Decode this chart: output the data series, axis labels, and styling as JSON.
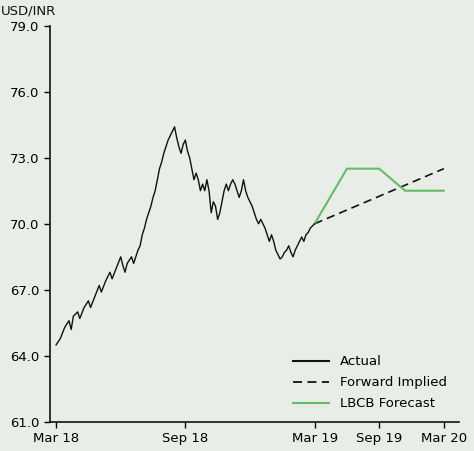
{
  "background_color": "#e8ede8",
  "ylabel": "USD/INR",
  "ylim": [
    61.0,
    79.0
  ],
  "yticks": [
    61.0,
    64.0,
    67.0,
    70.0,
    73.0,
    76.0,
    79.0
  ],
  "xtick_labels": [
    "Mar 18",
    "Sep 18",
    "Mar 19",
    "Sep 19",
    "Mar 20"
  ],
  "xtick_pos": [
    0,
    6,
    12,
    15,
    18
  ],
  "xlim": [
    -0.3,
    18.7
  ],
  "actual_color": "#111111",
  "forward_color": "#111111",
  "lbcb_color": "#66bb66",
  "actual_data": [
    [
      0.0,
      64.5
    ],
    [
      0.2,
      64.8
    ],
    [
      0.4,
      65.3
    ],
    [
      0.6,
      65.6
    ],
    [
      0.7,
      65.2
    ],
    [
      0.8,
      65.8
    ],
    [
      1.0,
      66.0
    ],
    [
      1.1,
      65.7
    ],
    [
      1.3,
      66.2
    ],
    [
      1.5,
      66.5
    ],
    [
      1.6,
      66.2
    ],
    [
      1.8,
      66.7
    ],
    [
      2.0,
      67.2
    ],
    [
      2.1,
      66.9
    ],
    [
      2.3,
      67.4
    ],
    [
      2.5,
      67.8
    ],
    [
      2.6,
      67.5
    ],
    [
      2.8,
      68.0
    ],
    [
      3.0,
      68.5
    ],
    [
      3.1,
      68.1
    ],
    [
      3.2,
      67.8
    ],
    [
      3.3,
      68.2
    ],
    [
      3.5,
      68.5
    ],
    [
      3.6,
      68.2
    ],
    [
      3.8,
      68.8
    ],
    [
      3.9,
      69.0
    ],
    [
      4.0,
      69.5
    ],
    [
      4.1,
      69.8
    ],
    [
      4.2,
      70.2
    ],
    [
      4.3,
      70.5
    ],
    [
      4.4,
      70.8
    ],
    [
      4.5,
      71.2
    ],
    [
      4.6,
      71.5
    ],
    [
      4.7,
      72.0
    ],
    [
      4.8,
      72.5
    ],
    [
      4.9,
      72.8
    ],
    [
      5.0,
      73.2
    ],
    [
      5.1,
      73.5
    ],
    [
      5.2,
      73.8
    ],
    [
      5.3,
      74.0
    ],
    [
      5.4,
      74.2
    ],
    [
      5.5,
      74.4
    ],
    [
      5.6,
      73.9
    ],
    [
      5.7,
      73.5
    ],
    [
      5.8,
      73.2
    ],
    [
      5.9,
      73.6
    ],
    [
      6.0,
      73.8
    ],
    [
      6.1,
      73.3
    ],
    [
      6.2,
      73.0
    ],
    [
      6.3,
      72.5
    ],
    [
      6.4,
      72.0
    ],
    [
      6.5,
      72.3
    ],
    [
      6.6,
      72.0
    ],
    [
      6.7,
      71.5
    ],
    [
      6.8,
      71.8
    ],
    [
      6.9,
      71.5
    ],
    [
      7.0,
      72.0
    ],
    [
      7.1,
      71.5
    ],
    [
      7.2,
      70.5
    ],
    [
      7.3,
      71.0
    ],
    [
      7.4,
      70.8
    ],
    [
      7.5,
      70.2
    ],
    [
      7.6,
      70.5
    ],
    [
      7.7,
      71.0
    ],
    [
      7.8,
      71.5
    ],
    [
      7.9,
      71.8
    ],
    [
      8.0,
      71.5
    ],
    [
      8.1,
      71.8
    ],
    [
      8.2,
      72.0
    ],
    [
      8.3,
      71.8
    ],
    [
      8.4,
      71.5
    ],
    [
      8.5,
      71.2
    ],
    [
      8.6,
      71.5
    ],
    [
      8.7,
      72.0
    ],
    [
      8.8,
      71.5
    ],
    [
      8.9,
      71.2
    ],
    [
      9.0,
      71.0
    ],
    [
      9.1,
      70.8
    ],
    [
      9.2,
      70.5
    ],
    [
      9.3,
      70.2
    ],
    [
      9.4,
      70.0
    ],
    [
      9.5,
      70.2
    ],
    [
      9.6,
      70.0
    ],
    [
      9.7,
      69.8
    ],
    [
      9.8,
      69.5
    ],
    [
      9.9,
      69.2
    ],
    [
      10.0,
      69.5
    ],
    [
      10.1,
      69.2
    ],
    [
      10.2,
      68.8
    ],
    [
      10.3,
      68.6
    ],
    [
      10.4,
      68.4
    ],
    [
      10.5,
      68.5
    ],
    [
      10.6,
      68.7
    ],
    [
      10.7,
      68.8
    ],
    [
      10.8,
      69.0
    ],
    [
      10.9,
      68.7
    ],
    [
      11.0,
      68.5
    ],
    [
      11.1,
      68.8
    ],
    [
      11.2,
      69.0
    ],
    [
      11.3,
      69.2
    ],
    [
      11.4,
      69.4
    ],
    [
      11.5,
      69.2
    ],
    [
      11.6,
      69.5
    ],
    [
      11.7,
      69.6
    ],
    [
      11.8,
      69.8
    ],
    [
      11.9,
      69.9
    ],
    [
      12.0,
      70.0
    ]
  ],
  "forward_data": [
    [
      12.0,
      70.0
    ],
    [
      18.0,
      72.5
    ]
  ],
  "lbcb_data": [
    [
      12.0,
      70.0
    ],
    [
      13.5,
      72.5
    ],
    [
      15.0,
      72.5
    ],
    [
      16.2,
      71.5
    ],
    [
      18.0,
      71.5
    ]
  ],
  "legend_labels": [
    "Actual",
    "Forward Implied",
    "LBCB Forecast"
  ],
  "tick_fontsize": 9.5,
  "legend_fontsize": 9.5
}
